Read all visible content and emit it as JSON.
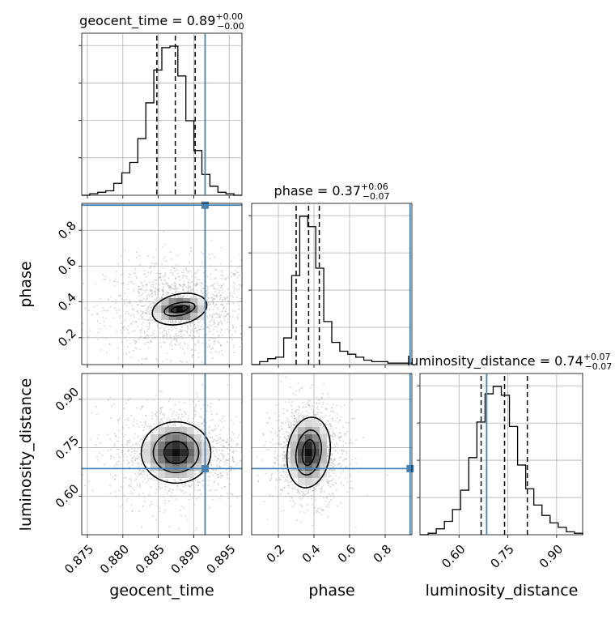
{
  "chart_data": {
    "type": "corner",
    "truth_color": "#4682b4",
    "grid": true,
    "parameters": [
      {
        "key": "geocent_time",
        "label": "geocent_time",
        "title_main": "geocent_time = 0.89",
        "title_sup": "+0.00",
        "title_sub": "−0.00",
        "range": [
          0.8742,
          0.8968
        ],
        "ticks": [
          0.875,
          0.88,
          0.885,
          0.89,
          0.895
        ],
        "tick_labels": [
          "0.875",
          "0.880",
          "0.885",
          "0.890",
          "0.895"
        ],
        "truth": 0.8916,
        "quantiles": [
          0.8848,
          0.8874,
          0.8902
        ],
        "hist": [
          0,
          0.01,
          0.02,
          0.03,
          0.08,
          0.15,
          0.22,
          0.38,
          0.62,
          0.84,
          0.99,
          1.0,
          0.8,
          0.5,
          0.3,
          0.14,
          0.06,
          0.02,
          0.01,
          0
        ]
      },
      {
        "key": "phase",
        "label": "phase",
        "title_main": "phase = 0.37",
        "title_sup": "+0.06",
        "title_sub": "−0.07",
        "range": [
          0.05,
          0.95
        ],
        "ticks": [
          0.2,
          0.4,
          0.6,
          0.8
        ],
        "tick_labels": [
          "0.2",
          "0.4",
          "0.6",
          "0.8"
        ],
        "truth": 0.94,
        "quantiles": [
          0.3,
          0.37,
          0.43
        ],
        "hist": [
          0,
          0.02,
          0.04,
          0.05,
          0.18,
          0.6,
          1.0,
          0.93,
          0.65,
          0.29,
          0.15,
          0.09,
          0.07,
          0.05,
          0.03,
          0.02,
          0.02,
          0.01,
          0.01,
          0.01
        ]
      },
      {
        "key": "luminosity_distance",
        "label": "luminosity_distance",
        "title_main": "luminosity_distance = 0.74",
        "title_sup": "+0.07",
        "title_sub": "−0.07",
        "range": [
          0.48,
          0.98
        ],
        "ticks": [
          0.6,
          0.75,
          0.9
        ],
        "tick_labels": [
          "0.60",
          "0.75",
          "0.90"
        ],
        "truth": 0.685,
        "quantiles": [
          0.668,
          0.74,
          0.81
        ],
        "hist": [
          0,
          0.01,
          0.04,
          0.09,
          0.17,
          0.3,
          0.52,
          0.76,
          0.95,
          1.0,
          0.94,
          0.73,
          0.47,
          0.31,
          0.2,
          0.13,
          0.08,
          0.05,
          0.02,
          0.01
        ]
      }
    ],
    "pairs": [
      {
        "row": 1,
        "col": 0,
        "center": [
          0.888,
          0.36
        ],
        "spread": [
          0.0045,
          0.12
        ],
        "contours": [
          {
            "rx": 0.0039,
            "ry": 0.084
          },
          {
            "rx": 0.0022,
            "ry": 0.035
          },
          {
            "rx": 0.0012,
            "ry": 0.017
          }
        ],
        "tilt": -12
      },
      {
        "row": 2,
        "col": 0,
        "center": [
          0.8875,
          0.735
        ],
        "spread": [
          0.004,
          0.07
        ],
        "contours": [
          {
            "rx": 0.0049,
            "ry": 0.095
          },
          {
            "rx": 0.0032,
            "ry": 0.062
          },
          {
            "rx": 0.0017,
            "ry": 0.035
          }
        ],
        "tilt": 0
      },
      {
        "row": 2,
        "col": 1,
        "center": [
          0.37,
          0.735
        ],
        "spread": [
          0.09,
          0.07
        ],
        "contours": [
          {
            "rx": 0.12,
            "ry": 0.11
          },
          {
            "rx": 0.07,
            "ry": 0.07
          },
          {
            "rx": 0.035,
            "ry": 0.04
          }
        ],
        "tilt": 8
      }
    ]
  }
}
